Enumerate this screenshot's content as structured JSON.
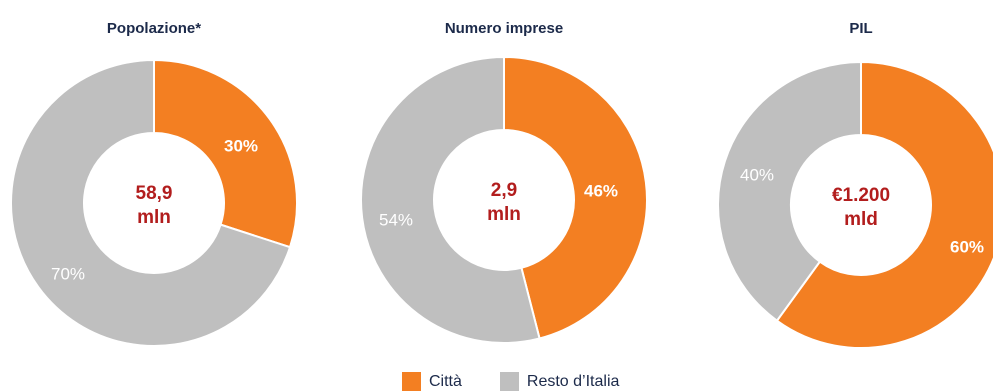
{
  "colors": {
    "citta": "#f37f22",
    "resto": "#bfbfbf",
    "title": "#1c2a4a",
    "center": "#b21d1d",
    "label_on_orange": "#ffffff",
    "label_on_gray": "#ffffff"
  },
  "legend": [
    {
      "name": "Città",
      "color": "#f37f22"
    },
    {
      "name": "Resto d’Italia",
      "color": "#bfbfbf"
    }
  ],
  "chart_data": [
    {
      "type": "pie",
      "title": "Popolazione*",
      "center_text": [
        "58,9",
        "mln"
      ],
      "slices": [
        {
          "name": "Città",
          "value": 30,
          "label": "30%"
        },
        {
          "name": "Resto d’Italia",
          "value": 70,
          "label": "70%"
        }
      ]
    },
    {
      "type": "pie",
      "title": "Numero imprese",
      "center_text": [
        "2,9",
        "mln"
      ],
      "slices": [
        {
          "name": "Città",
          "value": 46,
          "label": "46%"
        },
        {
          "name": "Resto d’Italia",
          "value": 54,
          "label": "54%"
        }
      ]
    },
    {
      "type": "pie",
      "title": "PIL",
      "center_text": [
        "€1.200",
        "mld"
      ],
      "slices": [
        {
          "name": "Città",
          "value": 60,
          "label": "60%"
        },
        {
          "name": "Resto d’Italia",
          "value": 40,
          "label": "40%"
        }
      ]
    }
  ]
}
